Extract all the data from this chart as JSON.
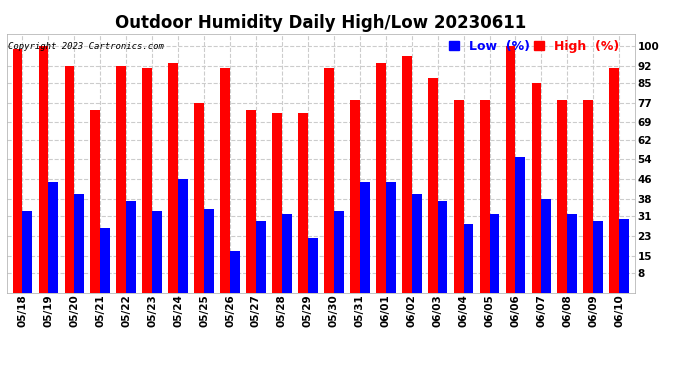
{
  "title": "Outdoor Humidity Daily High/Low 20230611",
  "copyright": "Copyright 2023 Cartronics.com",
  "legend_low": "Low  (%)",
  "legend_high": "High  (%)",
  "dates": [
    "05/18",
    "05/19",
    "05/20",
    "05/21",
    "05/22",
    "05/23",
    "05/24",
    "05/25",
    "05/26",
    "05/27",
    "05/28",
    "05/29",
    "05/30",
    "05/31",
    "06/01",
    "06/02",
    "06/03",
    "06/04",
    "06/05",
    "06/06",
    "06/07",
    "06/08",
    "06/09",
    "06/10"
  ],
  "high": [
    99,
    100,
    92,
    74,
    92,
    91,
    93,
    77,
    91,
    74,
    73,
    73,
    91,
    78,
    93,
    96,
    87,
    78,
    78,
    100,
    85,
    78,
    78,
    91
  ],
  "low": [
    33,
    45,
    40,
    26,
    37,
    33,
    46,
    34,
    17,
    29,
    32,
    22,
    33,
    45,
    45,
    40,
    37,
    28,
    32,
    55,
    38,
    32,
    29,
    30
  ],
  "high_color": "#ff0000",
  "low_color": "#0000ff",
  "background_color": "#ffffff",
  "grid_color": "#cccccc",
  "yticks": [
    8,
    15,
    23,
    31,
    38,
    46,
    54,
    62,
    69,
    77,
    85,
    92,
    100
  ],
  "ylim": [
    0,
    105
  ],
  "bar_width": 0.38,
  "title_fontsize": 12,
  "tick_fontsize": 7.5,
  "legend_fontsize": 9,
  "copyright_fontsize": 6.5
}
